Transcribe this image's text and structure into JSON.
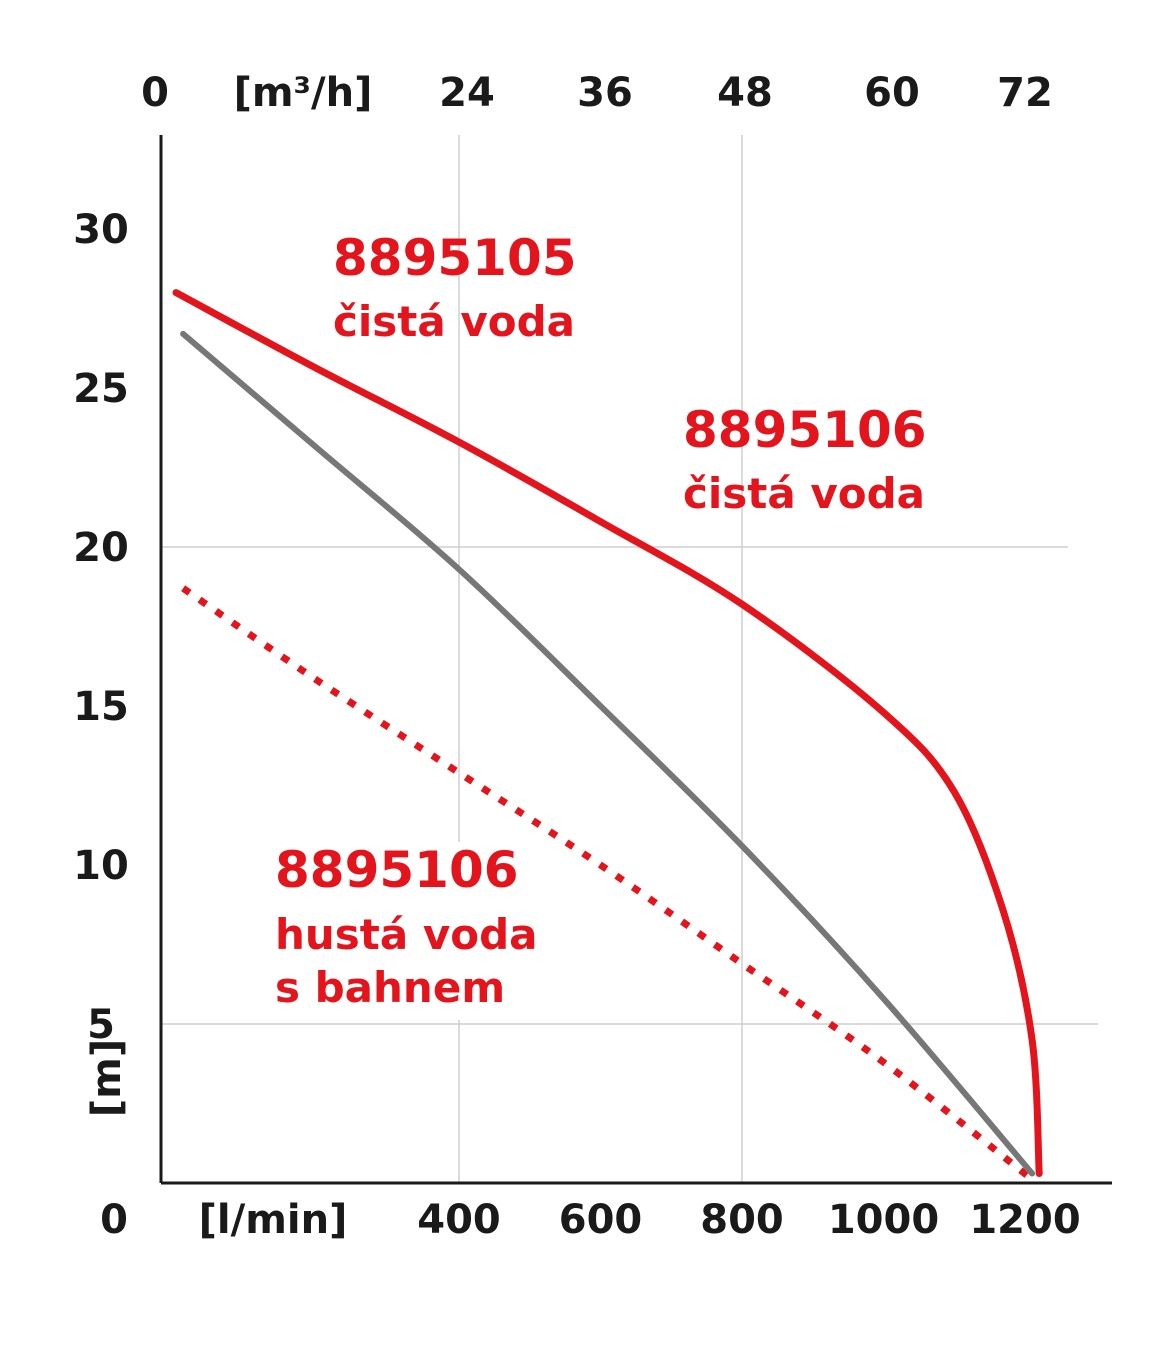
{
  "chart_data": {
    "type": "line",
    "x_bottom": {
      "unit_label": "[l/min]",
      "zero_label": "0",
      "ticks": [
        400,
        600,
        800,
        1000,
        1200
      ]
    },
    "x_top": {
      "unit_label": "[m³/h]",
      "zero_label": "0",
      "ticks": [
        24,
        36,
        48,
        60,
        72
      ]
    },
    "y": {
      "unit_label": "[m]",
      "zero_label": "0",
      "ticks": [
        5,
        10,
        15,
        20,
        25,
        30
      ]
    },
    "grid": {
      "x": [
        400,
        800
      ],
      "y": [
        5,
        20
      ]
    },
    "series": [
      {
        "name": "8895105 čistá voda",
        "model": "8895105",
        "desc": "čistá voda",
        "color": "#e3141b",
        "style": "solid",
        "points": [
          [
            0,
            28
          ],
          [
            200,
            25.6
          ],
          [
            400,
            23.3
          ],
          [
            600,
            20.8
          ],
          [
            800,
            18.2
          ],
          [
            1000,
            14.8
          ],
          [
            1100,
            12.3
          ],
          [
            1170,
            8.5
          ],
          [
            1210,
            4.5
          ],
          [
            1220,
            0.3
          ]
        ]
      },
      {
        "name": "",
        "color": "#777777",
        "style": "solid",
        "points": [
          [
            10,
            26.7
          ],
          [
            200,
            23.1
          ],
          [
            400,
            19.3
          ],
          [
            600,
            15
          ],
          [
            800,
            10.6
          ],
          [
            1000,
            5.8
          ],
          [
            1210,
            0.3
          ]
        ]
      },
      {
        "name": "8895106 hustá voda s bahnem",
        "model": "8895106",
        "desc_line1": "hustá voda",
        "desc_line2": "s bahnem",
        "color": "#e3141b",
        "style": "dotted",
        "points": [
          [
            10,
            18.7
          ],
          [
            200,
            15.8
          ],
          [
            400,
            12.9
          ],
          [
            600,
            10
          ],
          [
            800,
            6.9
          ],
          [
            1000,
            3.8
          ],
          [
            1205,
            0.2
          ]
        ]
      }
    ],
    "annotations": [
      {
        "model": "8895106",
        "desc": "čistá voda"
      }
    ]
  }
}
